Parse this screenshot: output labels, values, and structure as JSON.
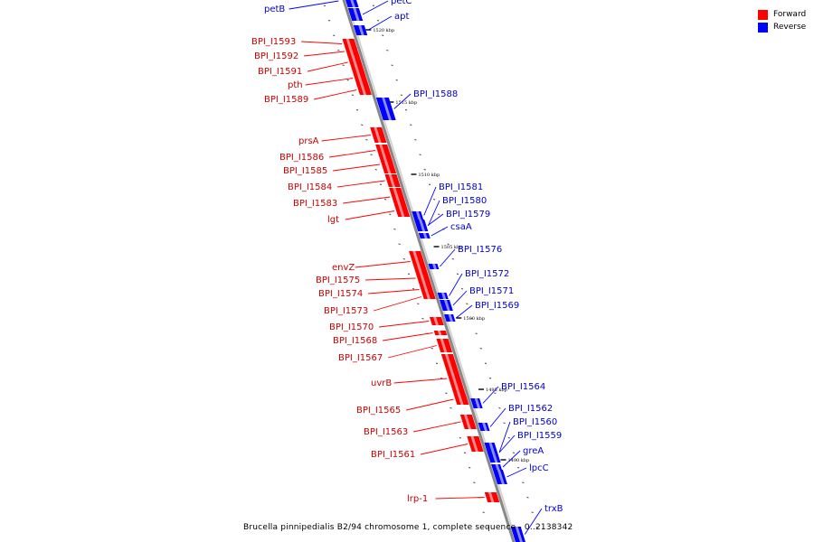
{
  "legend": {
    "items": [
      {
        "label": "Forward",
        "color": "#ff0000"
      },
      {
        "label": "Reverse",
        "color": "#0000ff"
      }
    ]
  },
  "caption": "Brucella pinnipedialis B2/94 chromosome 1, complete sequence - 0..2138342",
  "colors": {
    "forward": "#ff0000",
    "forward_light": "#ff8c8c",
    "reverse": "#0000ff",
    "reverse_light": "#8c8cff",
    "label_forward": "#cc0000",
    "label_reverse": "#0000cc",
    "axis": "#888888"
  },
  "ticks": [
    "1520 kbp",
    "1515 kbp",
    "1510 kbp",
    "1505 kbp",
    "1500 kbp",
    "1495 kbp",
    "1490 kbp"
  ],
  "forward_genes": [
    "BPI_I1593",
    "BPI_I1592",
    "BPI_I1591",
    "pth",
    "BPI_I1589",
    "prsA",
    "BPI_I1586",
    "BPI_I1585",
    "BPI_I1584",
    "BPI_I1583",
    "lgt",
    "envZ",
    "BPI_I1575",
    "BPI_I1574",
    "BPI_I1573",
    "BPI_I1570",
    "BPI_I1568",
    "BPI_I1567",
    "uvrB",
    "BPI_I1565",
    "BPI_I1563",
    "BPI_I1561",
    "lrp-1"
  ],
  "reverse_genes": [
    "petB",
    "petC",
    "apt",
    "BPI_I1588",
    "BPI_I1581",
    "BPI_I1580",
    "BPI_I1579",
    "csaA",
    "BPI_I1576",
    "BPI_I1572",
    "BPI_I1571",
    "BPI_I1569",
    "BPI_I1564",
    "BPI_I1562",
    "BPI_I1560",
    "BPI_I1559",
    "greA",
    "lpcC",
    "trxB"
  ]
}
